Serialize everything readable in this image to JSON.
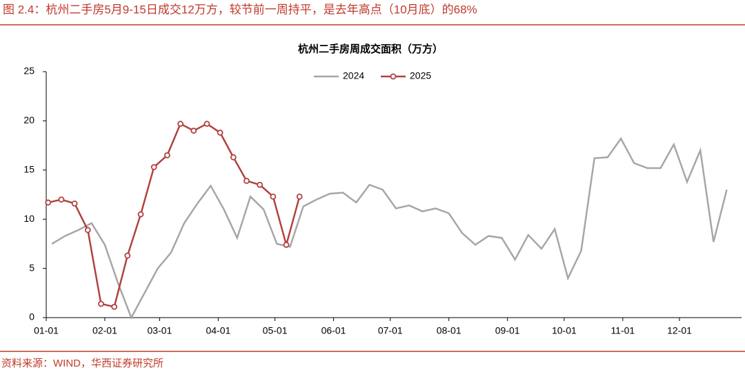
{
  "header": {
    "title": "图 2.4：杭州二手房5月9-15日成交12万方，较节前一周持平，是去年高点（10月底）的68%"
  },
  "chart_data": {
    "type": "line",
    "title": "杭州二手房周成交面积（万方）",
    "xlim": [
      0,
      366
    ],
    "xticks": [
      {
        "value": 0,
        "label": "01-01"
      },
      {
        "value": 31,
        "label": "02-01"
      },
      {
        "value": 60,
        "label": "03-01"
      },
      {
        "value": 91,
        "label": "04-01"
      },
      {
        "value": 121,
        "label": "05-01"
      },
      {
        "value": 152,
        "label": "06-01"
      },
      {
        "value": 182,
        "label": "07-01"
      },
      {
        "value": 213,
        "label": "08-01"
      },
      {
        "value": 244,
        "label": "09-01"
      },
      {
        "value": 274,
        "label": "10-01"
      },
      {
        "value": 305,
        "label": "11-01"
      },
      {
        "value": 335,
        "label": "12-01"
      }
    ],
    "ylim": [
      0,
      25
    ],
    "yticks": [
      0,
      5,
      10,
      15,
      20,
      25
    ],
    "grid": false,
    "legend": "top",
    "series": [
      {
        "name": "2024",
        "color": "#a6a6a6",
        "markers": false,
        "x": [
          3,
          10,
          17,
          24,
          31,
          38,
          45,
          52,
          59,
          66,
          73,
          80,
          87,
          94,
          101,
          108,
          115,
          122,
          129,
          136,
          143,
          150,
          157,
          164,
          171,
          178,
          185,
          192,
          199,
          206,
          213,
          220,
          227,
          234,
          241,
          248,
          255,
          262,
          269,
          276,
          283,
          290,
          297,
          304,
          311,
          318,
          325,
          332,
          339,
          346,
          353,
          360
        ],
        "values": [
          7.5,
          8.3,
          8.9,
          9.6,
          7.4,
          3.5,
          0,
          2.5,
          5.0,
          6.6,
          9.6,
          11.6,
          13.4,
          11.0,
          8.1,
          12.3,
          11.0,
          7.5,
          7.2,
          11.3,
          12.0,
          12.6,
          12.7,
          11.7,
          13.5,
          13.0,
          11.1,
          11.4,
          10.8,
          11.1,
          10.6,
          8.6,
          7.4,
          8.3,
          8.1,
          5.9,
          8.4,
          7.0,
          9.0,
          4.0,
          6.8,
          16.2,
          16.3,
          18.2,
          15.7,
          15.2,
          15.2,
          17.6,
          13.8,
          17.0,
          7.7,
          13.0
        ]
      },
      {
        "name": "2025",
        "color": "#b0413e",
        "markers": true,
        "x": [
          1,
          8,
          15,
          22,
          29,
          36,
          43,
          50,
          57,
          64,
          71,
          78,
          85,
          92,
          99,
          106,
          113,
          120,
          127,
          134
        ],
        "values": [
          11.7,
          12.0,
          11.6,
          8.9,
          1.4,
          1.1,
          6.3,
          10.5,
          15.3,
          16.5,
          19.7,
          19.0,
          19.7,
          18.8,
          16.3,
          13.9,
          13.5,
          12.3,
          7.4,
          12.3
        ]
      }
    ]
  },
  "source": "资料来源：WIND，华西证券研究所"
}
